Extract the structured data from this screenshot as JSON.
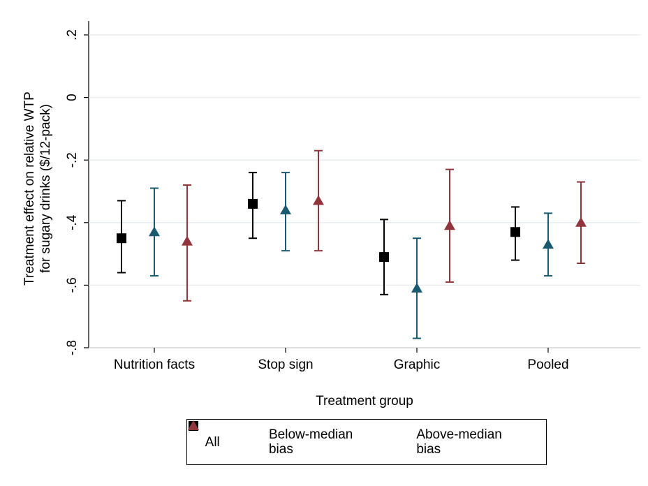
{
  "chart_data": {
    "type": "errorbar",
    "x_label": "Treatment group",
    "y_label": [
      "Treatment effect on relative WTP",
      "for sugary drinks ($/12-pack)"
    ],
    "categories": [
      "Nutrition facts",
      "Stop sign",
      "Graphic",
      "Pooled"
    ],
    "series": [
      {
        "name": "All",
        "color": "#000000",
        "marker": "square",
        "values": [
          -0.45,
          -0.34,
          -0.51,
          -0.43
        ],
        "lower": [
          -0.56,
          -0.45,
          -0.63,
          -0.52
        ],
        "upper": [
          -0.33,
          -0.24,
          -0.39,
          -0.35
        ]
      },
      {
        "name": "Below-median bias",
        "color": "#1a5a6f",
        "marker": "triangle",
        "values": [
          -0.43,
          -0.36,
          -0.61,
          -0.47
        ],
        "lower": [
          -0.57,
          -0.49,
          -0.77,
          -0.57
        ],
        "upper": [
          -0.29,
          -0.24,
          -0.45,
          -0.37
        ]
      },
      {
        "name": "Above-median bias",
        "color": "#90353b",
        "marker": "triangle",
        "values": [
          -0.46,
          -0.33,
          -0.41,
          -0.4
        ],
        "lower": [
          -0.65,
          -0.49,
          -0.59,
          -0.53
        ],
        "upper": [
          -0.28,
          -0.17,
          -0.23,
          -0.27
        ]
      }
    ],
    "ylim": [
      -0.8,
      0.2
    ],
    "yticks": [
      {
        "value": 0.2,
        "label": ".2"
      },
      0,
      {
        "value": -0.2,
        "label": "-.2"
      },
      {
        "value": -0.4,
        "label": "-.4"
      },
      {
        "value": -0.6,
        "label": "-.6"
      },
      {
        "value": -0.8,
        "label": "-.8"
      }
    ],
    "grid": true
  }
}
